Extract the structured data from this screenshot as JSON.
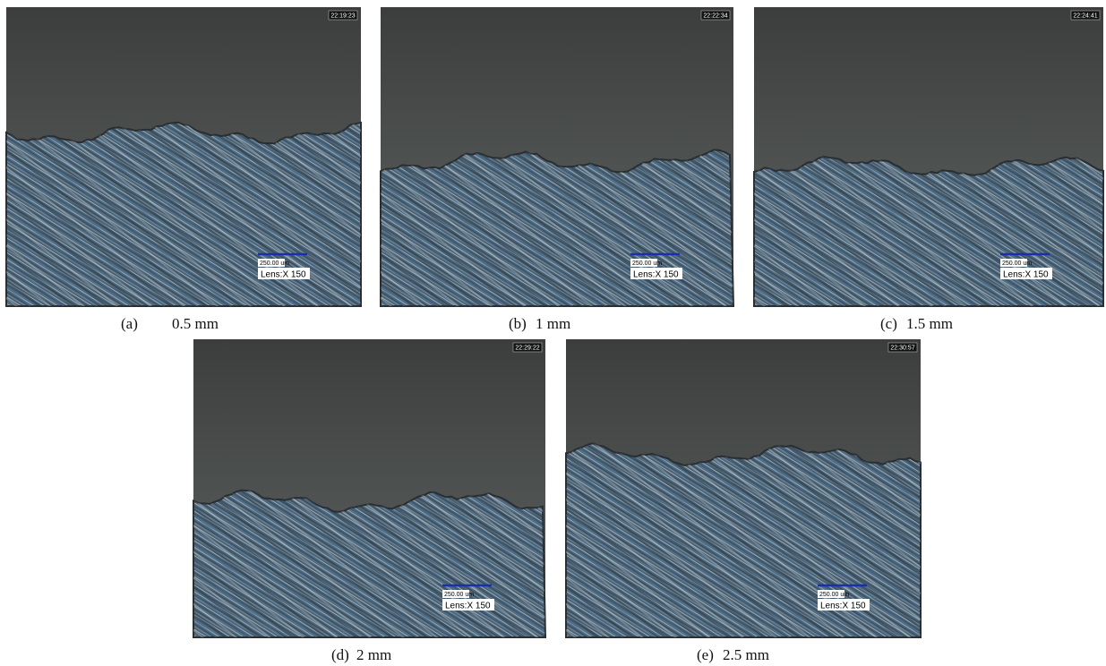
{
  "panels": [
    {
      "timestamp": "22:19:23",
      "scale": "250.00 um",
      "lens": "Lens:X 150",
      "label": "(a)",
      "caption": "0.5 mm"
    },
    {
      "timestamp": "22:22:34",
      "scale": "250.00 um",
      "lens": "Lens:X 150",
      "label": "(b)",
      "caption": "1 mm"
    },
    {
      "timestamp": "22:24:41",
      "scale": "250.00 um",
      "lens": "Lens:X 150",
      "label": "(c)",
      "caption": "1.5 mm"
    },
    {
      "timestamp": "22:29:22",
      "scale": "250.00 um",
      "lens": "Lens:X 150",
      "label": "(d)",
      "caption": "2 mm"
    },
    {
      "timestamp": "22:30:57",
      "scale": "250.00 um",
      "lens": "Lens:X 150",
      "label": "(e)",
      "caption": "2.5 mm"
    }
  ]
}
